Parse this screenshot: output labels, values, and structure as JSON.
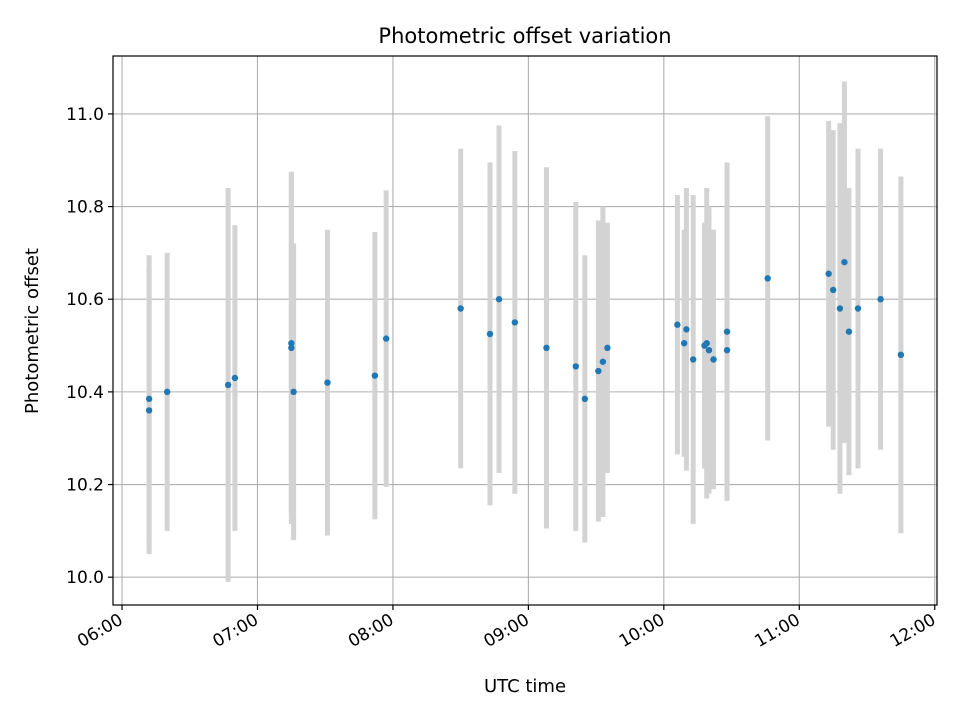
{
  "chart_data": {
    "type": "scatter",
    "title": "Photometric offset variation",
    "xlabel": "UTC time",
    "ylabel": "Photometric offset",
    "x_ticks": [
      "06:00",
      "07:00",
      "08:00",
      "09:00",
      "10:00",
      "11:00",
      "12:00"
    ],
    "x_tick_hours": [
      6,
      7,
      8,
      9,
      10,
      11,
      12
    ],
    "y_ticks": [
      "10.0",
      "10.2",
      "10.4",
      "10.6",
      "10.8",
      "11.0"
    ],
    "y_tick_values": [
      10.0,
      10.2,
      10.4,
      10.6,
      10.8,
      11.0
    ],
    "xlim": [
      "05:56",
      "12:01"
    ],
    "ylim": [
      9.94,
      11.125
    ],
    "grid": true,
    "colors": {
      "points": "#1f77b4",
      "errorbars": "#d3d3d3",
      "grid": "#b0b0b0"
    },
    "points": [
      {
        "t": "06:12",
        "y": 10.36,
        "err": 0.31
      },
      {
        "t": "06:12",
        "y": 10.385,
        "err": 0.31
      },
      {
        "t": "06:20",
        "y": 10.4,
        "err": 0.3
      },
      {
        "t": "06:47",
        "y": 10.415,
        "err": 0.425
      },
      {
        "t": "06:50",
        "y": 10.43,
        "err": 0.33
      },
      {
        "t": "07:15",
        "y": 10.495,
        "err": 0.38
      },
      {
        "t": "07:15",
        "y": 10.505,
        "err": 0.37
      },
      {
        "t": "07:16",
        "y": 10.4,
        "err": 0.32
      },
      {
        "t": "07:31",
        "y": 10.42,
        "err": 0.33
      },
      {
        "t": "07:52",
        "y": 10.435,
        "err": 0.31
      },
      {
        "t": "07:57",
        "y": 10.515,
        "err": 0.32
      },
      {
        "t": "08:30",
        "y": 10.58,
        "err": 0.345
      },
      {
        "t": "08:43",
        "y": 10.525,
        "err": 0.37
      },
      {
        "t": "08:47",
        "y": 10.6,
        "err": 0.375
      },
      {
        "t": "08:54",
        "y": 10.55,
        "err": 0.37
      },
      {
        "t": "09:08",
        "y": 10.495,
        "err": 0.39
      },
      {
        "t": "09:21",
        "y": 10.455,
        "err": 0.355
      },
      {
        "t": "09:25",
        "y": 10.385,
        "err": 0.31
      },
      {
        "t": "09:31",
        "y": 10.445,
        "err": 0.325
      },
      {
        "t": "09:33",
        "y": 10.465,
        "err": 0.335
      },
      {
        "t": "09:35",
        "y": 10.495,
        "err": 0.27
      },
      {
        "t": "10:06",
        "y": 10.545,
        "err": 0.28
      },
      {
        "t": "10:09",
        "y": 10.505,
        "err": 0.245
      },
      {
        "t": "10:10",
        "y": 10.535,
        "err": 0.305
      },
      {
        "t": "10:13",
        "y": 10.47,
        "err": 0.355
      },
      {
        "t": "10:18",
        "y": 10.5,
        "err": 0.265
      },
      {
        "t": "10:19",
        "y": 10.505,
        "err": 0.335
      },
      {
        "t": "10:20",
        "y": 10.49,
        "err": 0.31
      },
      {
        "t": "10:22",
        "y": 10.47,
        "err": 0.28
      },
      {
        "t": "10:28",
        "y": 10.49,
        "err": 0.325
      },
      {
        "t": "10:28",
        "y": 10.53,
        "err": 0.365
      },
      {
        "t": "10:46",
        "y": 10.645,
        "err": 0.35
      },
      {
        "t": "11:13",
        "y": 10.655,
        "err": 0.33
      },
      {
        "t": "11:15",
        "y": 10.62,
        "err": 0.345
      },
      {
        "t": "11:18",
        "y": 10.58,
        "err": 0.4
      },
      {
        "t": "11:20",
        "y": 10.68,
        "err": 0.39
      },
      {
        "t": "11:22",
        "y": 10.53,
        "err": 0.31
      },
      {
        "t": "11:26",
        "y": 10.58,
        "err": 0.345
      },
      {
        "t": "11:36",
        "y": 10.6,
        "err": 0.325
      },
      {
        "t": "11:45",
        "y": 10.48,
        "err": 0.385
      }
    ]
  }
}
